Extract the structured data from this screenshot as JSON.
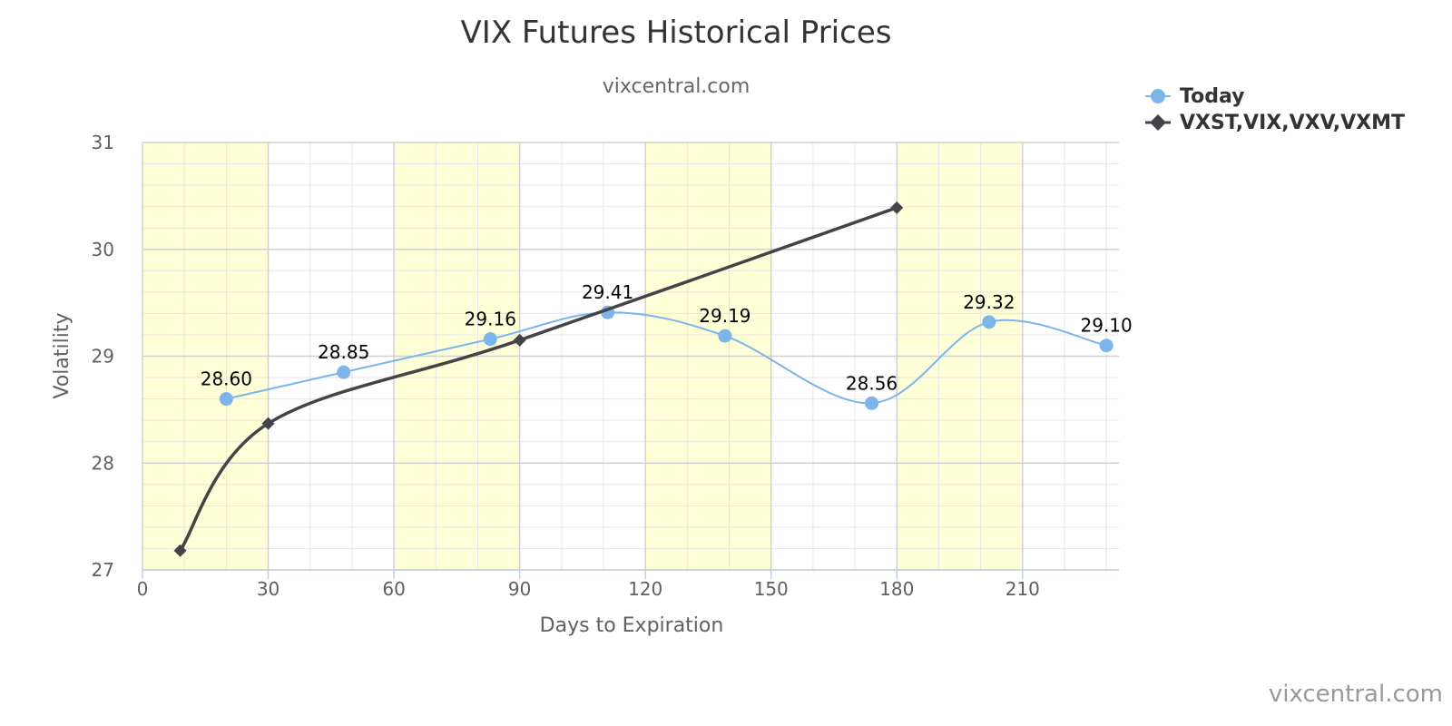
{
  "chart_data": {
    "type": "line",
    "title": "VIX Futures Historical Prices",
    "subtitle": "vixcentral.com",
    "xlabel": "Days to Expiration",
    "ylabel": "Volatility",
    "xlim": [
      0,
      233
    ],
    "ylim": [
      27,
      31
    ],
    "x_ticks": [
      0,
      30,
      60,
      90,
      120,
      150,
      180,
      210
    ],
    "y_ticks": [
      27,
      28,
      29,
      30,
      31
    ],
    "grid": true,
    "alternate_bands": [
      [
        0,
        30
      ],
      [
        60,
        90
      ],
      [
        120,
        150
      ],
      [
        180,
        210
      ]
    ],
    "band_color": "#ffffd7",
    "legend_position": "top-right",
    "series": [
      {
        "name": "Today",
        "color": "#7cb5ec",
        "marker": "circle",
        "data_labels": true,
        "points": [
          {
            "x": 20,
            "y": 28.6,
            "label": "28.60"
          },
          {
            "x": 48,
            "y": 28.85,
            "label": "28.85"
          },
          {
            "x": 83,
            "y": 29.16,
            "label": "29.16"
          },
          {
            "x": 111,
            "y": 29.41,
            "label": "29.41"
          },
          {
            "x": 139,
            "y": 29.19,
            "label": "29.19"
          },
          {
            "x": 174,
            "y": 28.56,
            "label": "28.56"
          },
          {
            "x": 202,
            "y": 29.32,
            "label": "29.32"
          },
          {
            "x": 230,
            "y": 29.1,
            "label": "29.10"
          }
        ]
      },
      {
        "name": "VXST,VIX,VXV,VXMT",
        "color": "#434348",
        "marker": "diamond",
        "data_labels": false,
        "points": [
          {
            "x": 9,
            "y": 27.18
          },
          {
            "x": 30,
            "y": 28.37
          },
          {
            "x": 90,
            "y": 29.15
          },
          {
            "x": 180,
            "y": 30.39
          }
        ]
      }
    ],
    "credits": "vixcentral.com"
  }
}
